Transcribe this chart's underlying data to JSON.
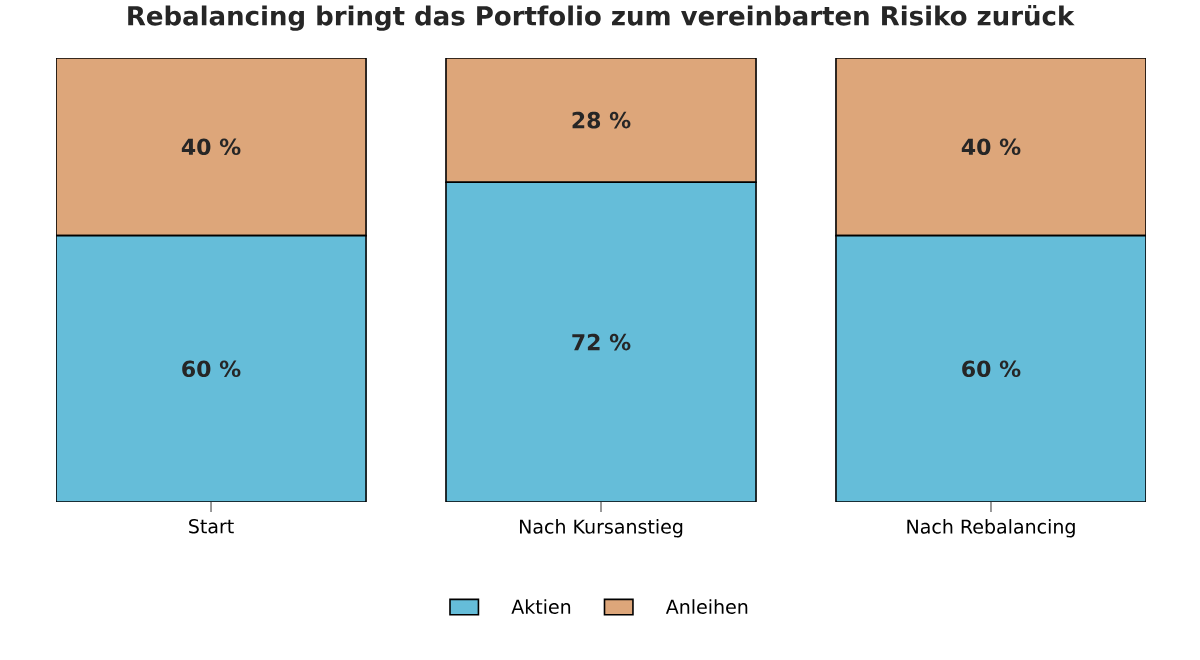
{
  "chart_data": {
    "type": "bar",
    "title": "Rebalancing bringt das Portfolio zum vereinbarten Risiko zurück",
    "categories": [
      "Start",
      "Nach Kursanstieg",
      "Nach Rebalancing"
    ],
    "stacked": true,
    "tick_labels": "x",
    "legend": "bottom",
    "series": [
      {
        "name": "Aktien",
        "color": "#65bdd9",
        "values": [
          60,
          72,
          60
        ],
        "value_labels": [
          "60 %",
          "72 %",
          "60 %"
        ]
      },
      {
        "name": "Anleihen",
        "color": "#dda67a",
        "values": [
          40,
          28,
          40
        ],
        "value_labels": [
          "40 %",
          "28 %",
          "40 %"
        ]
      }
    ]
  }
}
